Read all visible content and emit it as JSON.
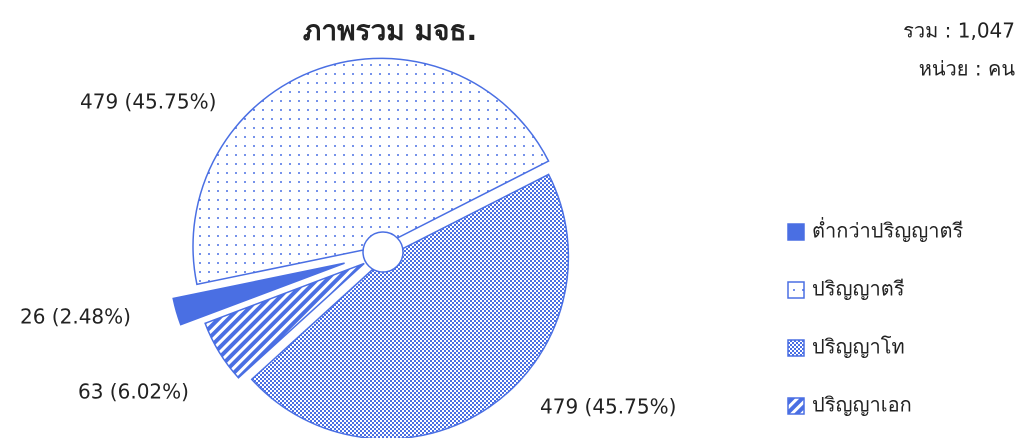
{
  "chart_data": {
    "type": "pie",
    "title": "ภาพรวม มจธ.",
    "total_label": "รวม : 1,047",
    "unit_label": "หน่วย : คน",
    "categories": [
      "ต่ำกว่าปริญญาตรี",
      "ปริญญาตรี",
      "ปริญญาโท",
      "ปริญญาเอก"
    ],
    "values": [
      26,
      479,
      479,
      63
    ],
    "value_labels": [
      "26 (2.48%)",
      "479 (45.75%)",
      "479 (45.75%)",
      "63 (6.02%)"
    ],
    "colors": [
      "#4a6fe3",
      "#4a6fe3",
      "#4a6fe3",
      "#4a6fe3"
    ],
    "legend": "right"
  }
}
